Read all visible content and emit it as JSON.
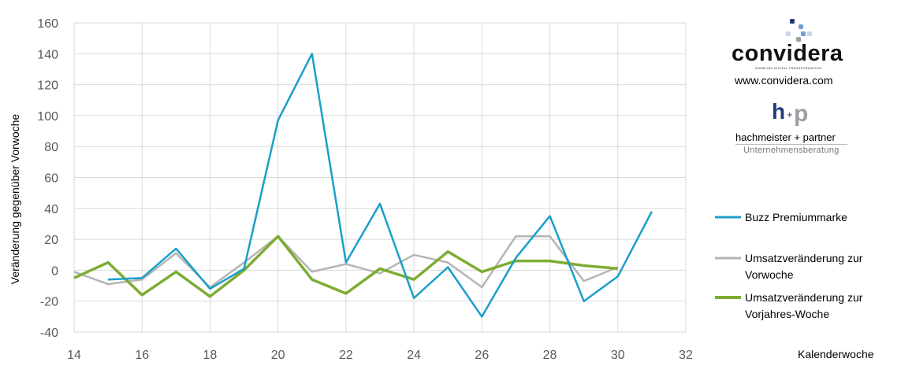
{
  "chart_data": {
    "type": "line",
    "xlabel": "Kalenderwoche",
    "ylabel": "Veränderung gegenüber Vorwoche",
    "xlim": [
      14,
      32
    ],
    "ylim": [
      -40,
      160
    ],
    "x_ticks": [
      14,
      16,
      18,
      20,
      22,
      24,
      26,
      28,
      30,
      32
    ],
    "y_ticks": [
      -40,
      -20,
      0,
      20,
      40,
      60,
      80,
      100,
      120,
      140,
      160
    ],
    "grid": true,
    "legend_position": "right",
    "series": [
      {
        "name": "Buzz Premiummarke",
        "color": "#1a9fc9",
        "x": [
          15,
          16,
          17,
          18,
          19,
          20,
          21,
          22,
          23,
          24,
          25,
          26,
          27,
          28,
          29,
          30,
          31
        ],
        "y": [
          -6,
          -5,
          14,
          -12,
          1,
          97,
          140,
          5,
          43,
          -18,
          2,
          -30,
          8,
          35,
          -20,
          -4,
          38
        ]
      },
      {
        "name": "Umsatzveränderung zur Vorwoche",
        "color": "#b5b5b5",
        "x": [
          14,
          15,
          16,
          17,
          18,
          19,
          20,
          21,
          22,
          23,
          24,
          25,
          26,
          27,
          28,
          29,
          30
        ],
        "y": [
          -1,
          -9,
          -6,
          11,
          -11,
          5,
          22,
          -1,
          4,
          -2,
          10,
          5,
          -11,
          22,
          22,
          -7,
          2
        ]
      },
      {
        "name": "Umsatzveränderung zur Vorjahres-Woche",
        "color": "#7eac33",
        "x": [
          14,
          15,
          16,
          17,
          18,
          19,
          20,
          21,
          22,
          23,
          24,
          25,
          26,
          27,
          28,
          29,
          30
        ],
        "y": [
          -5,
          5,
          -16,
          -1,
          -17,
          0,
          22,
          -6,
          -15,
          1,
          -6,
          12,
          -1,
          6,
          6,
          3,
          1
        ]
      }
    ],
    "legend_lines": [
      [
        "Buzz Premiummarke"
      ],
      [
        "Umsatzveränderung zur",
        "Vorwoche"
      ],
      [
        "Umsatzveränderung zur",
        "Vorjahres-Woche"
      ]
    ]
  },
  "logos": {
    "convidera_name": "convidera",
    "convidera_tagline": "ENABLING DIGITAL TRANSFORMATION",
    "convidera_url": "www.convidera.com",
    "hp_mark_h": "h",
    "hp_mark_plus": "+",
    "hp_mark_p": "p",
    "hp_name": "hachmeister + partner",
    "hp_subtitle": "Unternehmensberatung",
    "dot_colors": [
      "#1f3b7a",
      "#6fa0d6",
      "#9e9e9e",
      "#c9d4e6"
    ]
  }
}
